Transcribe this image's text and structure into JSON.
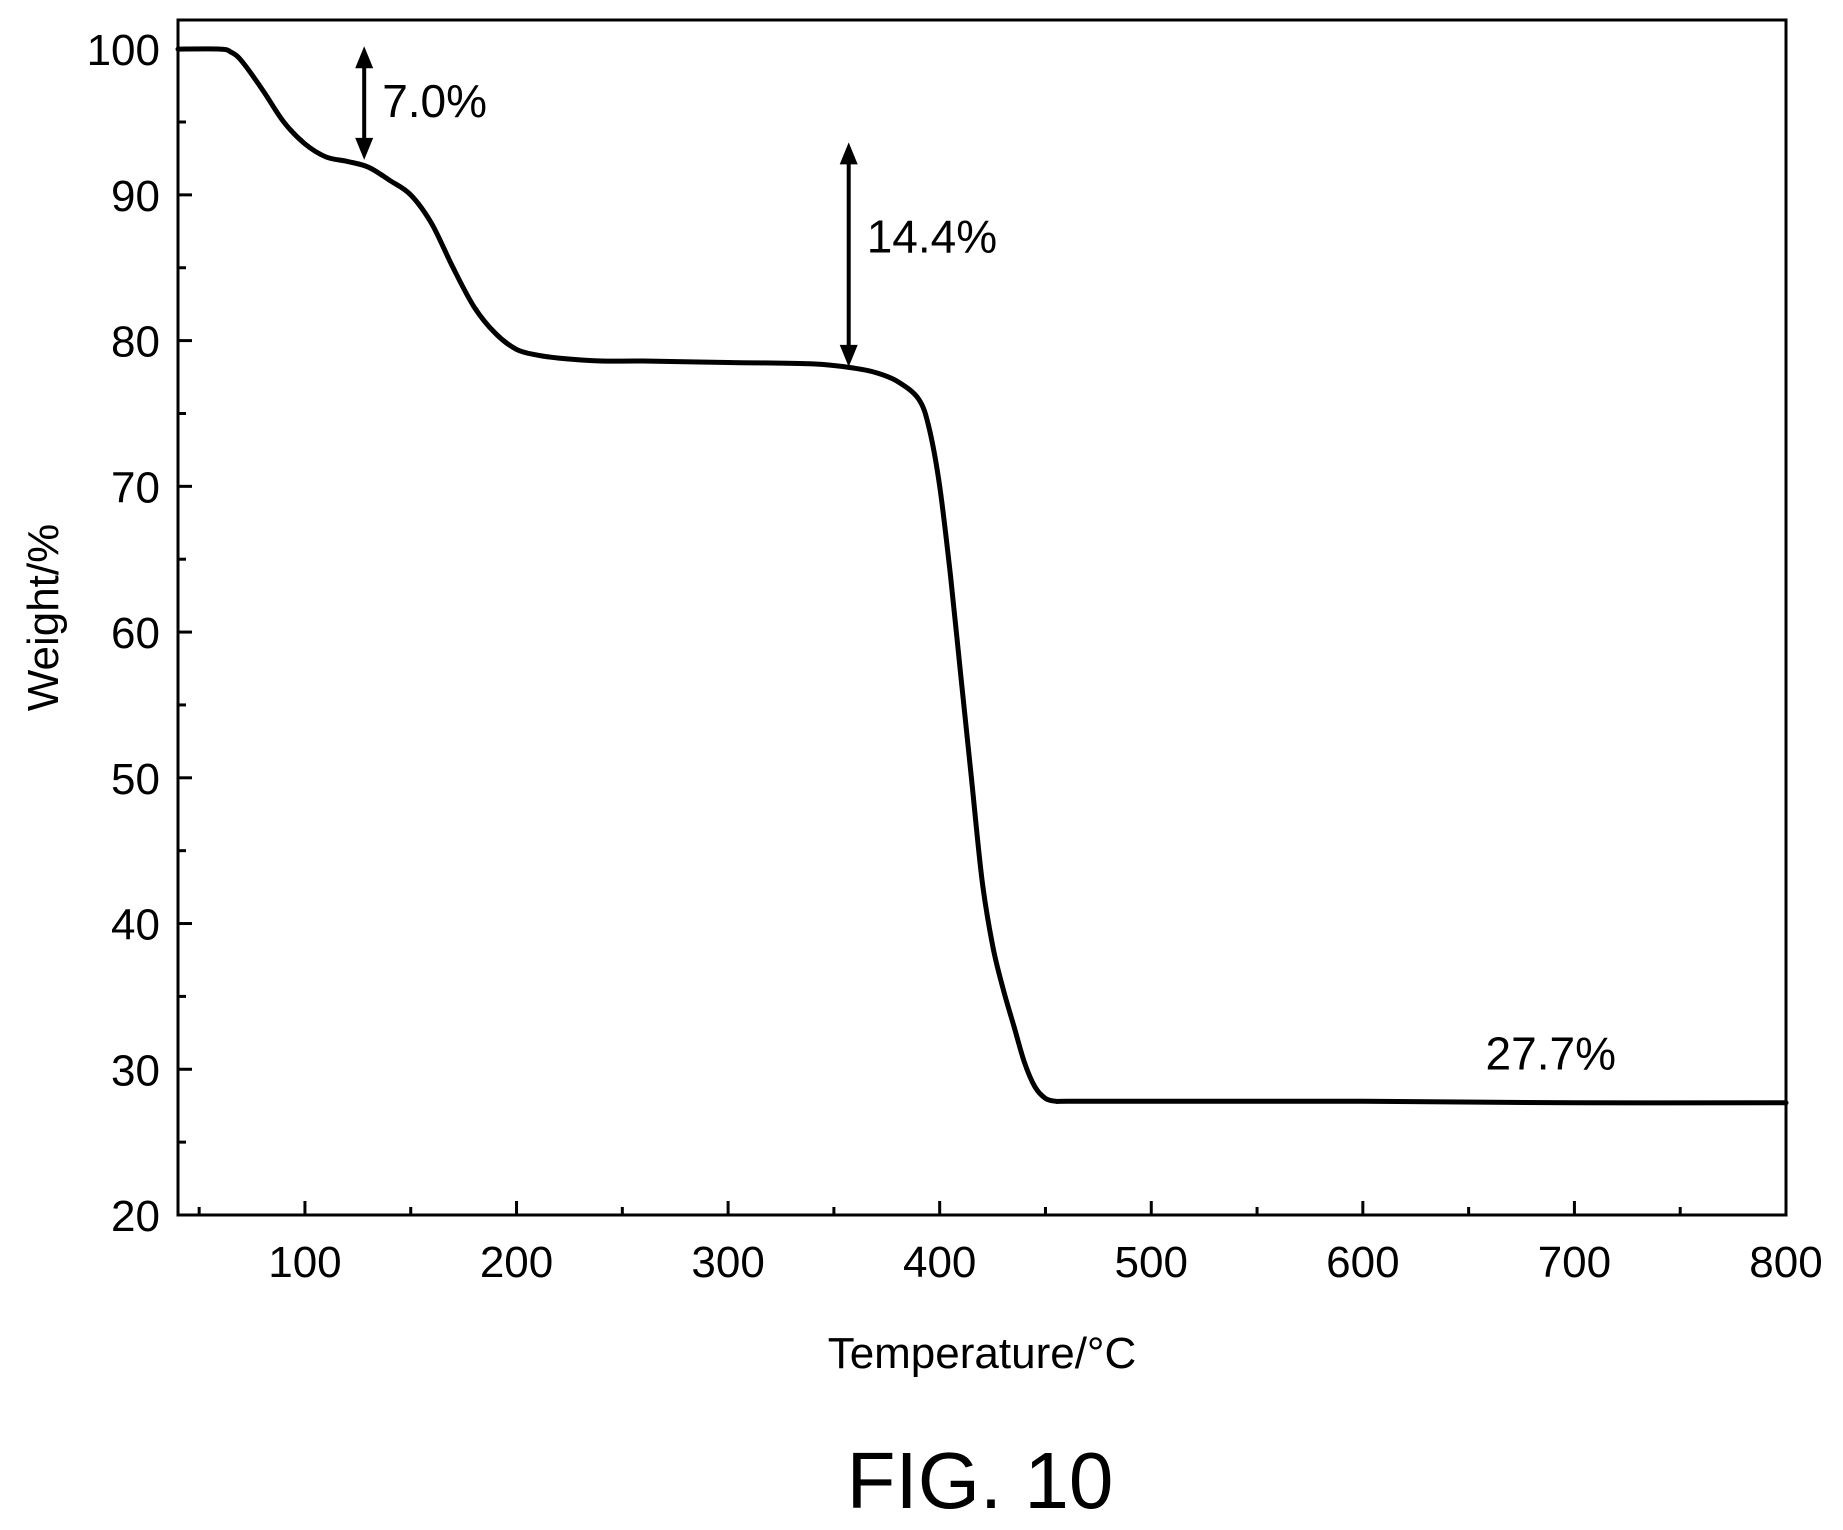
{
  "figure_caption": "FIG. 10",
  "chart_data": {
    "type": "line",
    "title": "",
    "xlabel": "Temperature/°C",
    "ylabel": "Weight/%",
    "xlim": [
      40,
      800
    ],
    "ylim": [
      20,
      102
    ],
    "x_ticks": [
      100,
      200,
      300,
      400,
      500,
      600,
      700,
      800
    ],
    "y_ticks": [
      20,
      30,
      40,
      50,
      60,
      70,
      80,
      90,
      100
    ],
    "x_minor_step": 50,
    "y_minor_step": 5,
    "grid": false,
    "legend": "none",
    "series": [
      {
        "x": [
          40,
          60,
          65,
          70,
          80,
          90,
          100,
          110,
          120,
          130,
          140,
          150,
          160,
          170,
          180,
          190,
          200,
          210,
          220,
          240,
          260,
          300,
          340,
          360,
          370,
          380,
          390,
          395,
          400,
          405,
          410,
          415,
          420,
          425,
          430,
          435,
          440,
          445,
          450,
          455,
          460,
          500,
          600,
          700,
          800
        ],
        "y": [
          100,
          100,
          99.8,
          99.2,
          97.2,
          95.0,
          93.5,
          92.6,
          92.3,
          91.9,
          91.0,
          90.0,
          88.0,
          85.0,
          82.3,
          80.5,
          79.4,
          79.0,
          78.8,
          78.6,
          78.6,
          78.5,
          78.4,
          78.1,
          77.8,
          77.2,
          76.0,
          74.0,
          70.0,
          64.0,
          57.0,
          50.0,
          43.0,
          38.5,
          35.5,
          33.0,
          30.5,
          28.8,
          28.0,
          27.8,
          27.8,
          27.8,
          27.8,
          27.7,
          27.7
        ],
        "color": "#000000"
      }
    ],
    "annotations": [
      {
        "text": "7.0%",
        "arrow_x": 128,
        "arrow_y_top": 100.2,
        "arrow_y_bottom": 92.4
      },
      {
        "text": "14.4%",
        "arrow_x": 357,
        "arrow_y_top": 93.6,
        "arrow_y_bottom": 78.2
      },
      {
        "text": "27.7%",
        "x": 658,
        "y": 30.0
      }
    ]
  }
}
